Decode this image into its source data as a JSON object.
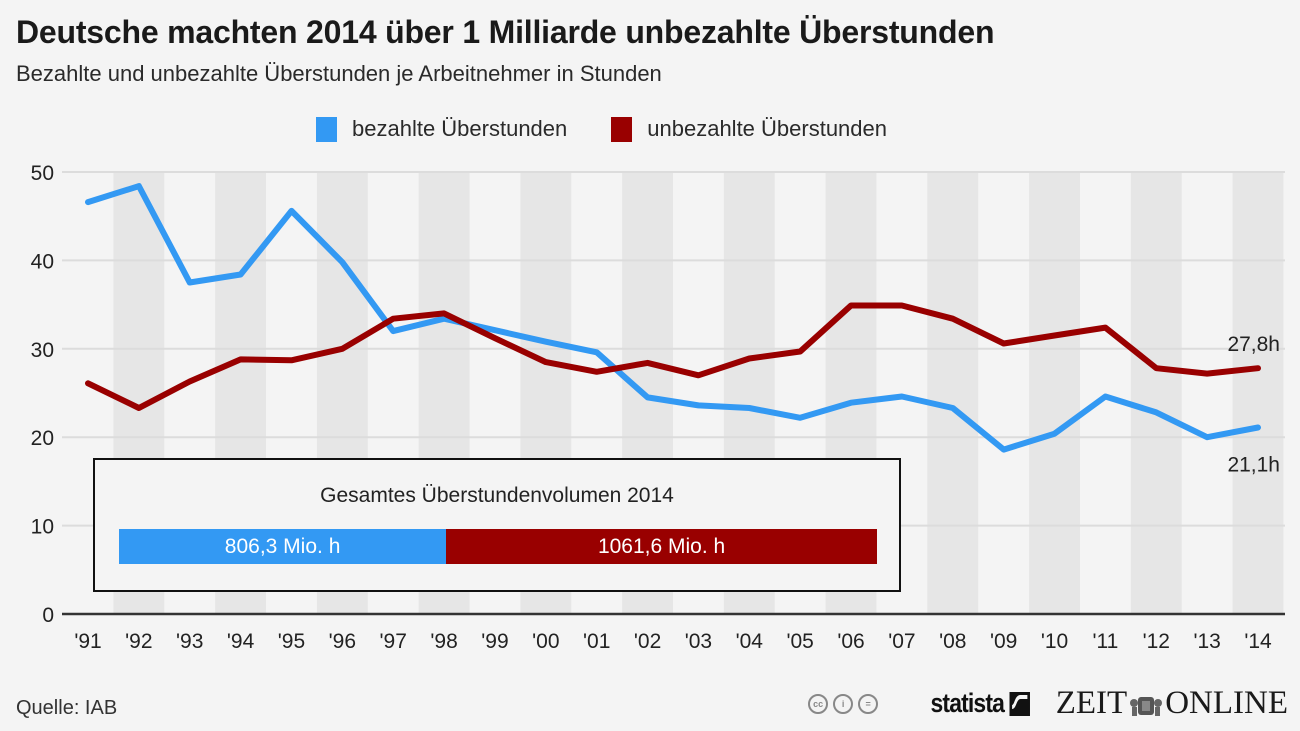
{
  "header": {
    "title": "Deutsche machten 2014 über 1 Milliarde unbezahlte Überstunden",
    "subtitle": "Bezahlte und unbezahlte Überstunden je Arbeitnehmer in Stunden"
  },
  "legend": [
    {
      "label": "bezahlte Überstunden",
      "color": "#3399f3"
    },
    {
      "label": "unbezahlte Überstunden",
      "color": "#990000"
    }
  ],
  "chart_data": {
    "type": "line",
    "title": "Deutsche machten 2014 über 1 Milliarde unbezahlte Überstunden",
    "subtitle": "Bezahlte und unbezahlte Überstunden je Arbeitnehmer in Stunden",
    "xlabel": "",
    "ylabel": "",
    "categories": [
      "'91",
      "'92",
      "'93",
      "'94",
      "'95",
      "'96",
      "'97",
      "'98",
      "'99",
      "'00",
      "'01",
      "'02",
      "'03",
      "'04",
      "'05",
      "'06",
      "'07",
      "'08",
      "'09",
      "'10",
      "'11",
      "'12",
      "'13",
      "'14"
    ],
    "ylim": [
      0,
      50
    ],
    "yticks": [
      0,
      10,
      20,
      30,
      40,
      50
    ],
    "grid": true,
    "legend_position": "top-center",
    "series": [
      {
        "name": "bezahlte Überstunden",
        "color": "#3399f3",
        "values": [
          46.6,
          48.4,
          37.5,
          38.4,
          45.6,
          39.8,
          32.0,
          33.4,
          32.1,
          30.8,
          29.6,
          24.5,
          23.6,
          23.3,
          22.2,
          23.9,
          24.6,
          23.3,
          18.6,
          20.4,
          24.6,
          22.8,
          20.0,
          21.1
        ],
        "end_label": "21,1h"
      },
      {
        "name": "unbezahlte Überstunden",
        "color": "#990000",
        "values": [
          26.1,
          23.3,
          26.3,
          28.8,
          28.7,
          30.0,
          33.4,
          34.0,
          31.2,
          28.5,
          27.4,
          28.4,
          27.0,
          28.9,
          29.7,
          34.9,
          34.9,
          33.4,
          30.6,
          31.5,
          32.4,
          27.8,
          27.2,
          27.8
        ],
        "end_label": "27,8h"
      }
    ],
    "inset": {
      "title": "Gesamtes Überstundenvolumen 2014",
      "segments": [
        {
          "label": "806,3 Mio. h",
          "value": 806.3,
          "color": "#3399f3"
        },
        {
          "label": "1061,6 Mio. h",
          "value": 1061.6,
          "color": "#990000"
        }
      ]
    }
  },
  "footer": {
    "source": "Quelle: IAB",
    "cc_icons": [
      "cc-icon",
      "by-icon",
      "nd-icon"
    ],
    "cc_labels": [
      "cc",
      "i",
      "="
    ],
    "statista_label": "statista",
    "zeit_left": "ZEIT",
    "zeit_right": "ONLINE"
  }
}
